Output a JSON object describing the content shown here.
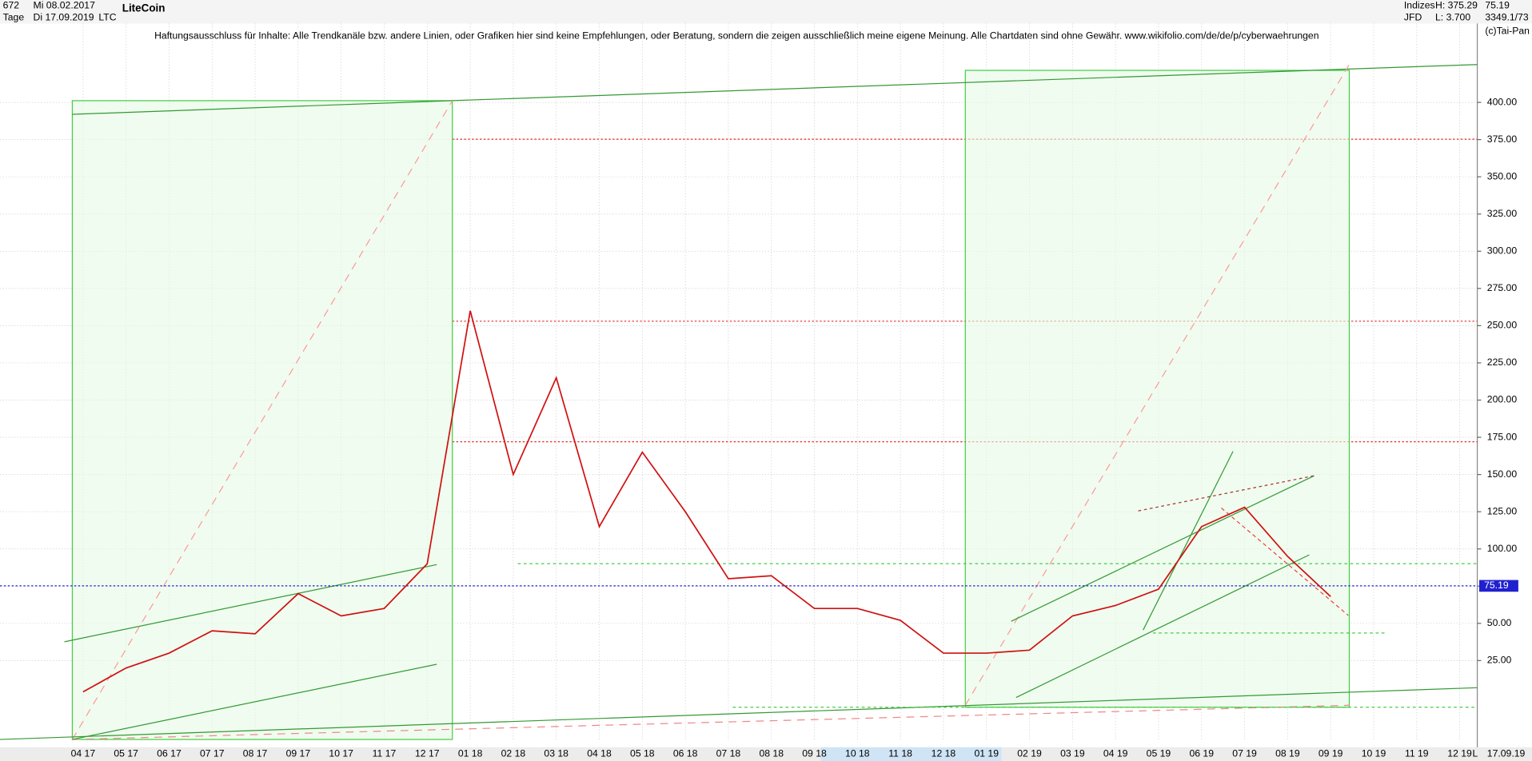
{
  "header": {
    "count": "672",
    "start": "Mi 08.02.2017",
    "period": "Tage",
    "end": "Di 17.09.2019",
    "title": "LiteCoin",
    "symbol": "LTC",
    "market": "Indizes",
    "exchange": "JFD",
    "high": "H: 375.29",
    "low": "L: 3.700",
    "last": "75.19",
    "volume": "3349.1/73",
    "copyright": "(c)Tai-Pan",
    "disclaimer": "Haftungsausschluss für Inhalte: Alle Trendkanäle bzw. andere Linien, oder Grafiken hier sind keine Empfehlungen, oder Beratung, sondern die zeigen ausschließlich meine eigene Meinung. Alle Chartdaten sind ohne Gewähr.  www.wikifolio.com/de/de/p/cyberwaehrungen",
    "date": "17.09.19",
    "scale_mode": "L"
  },
  "chart_data": {
    "type": "line",
    "categories": [
      "04 17",
      "05 17",
      "06 17",
      "07 17",
      "08 17",
      "09 17",
      "10 17",
      "11 17",
      "12 17",
      "01 18",
      "02 18",
      "03 18",
      "04 18",
      "05 18",
      "06 18",
      "07 18",
      "08 18",
      "09 18",
      "10 18",
      "11 18",
      "12 18",
      "01 19",
      "02 19",
      "03 19",
      "04 19",
      "05 19",
      "06 19",
      "07 19",
      "08 19",
      "09 19",
      "10 19",
      "11 19",
      "12 19"
    ],
    "series": [
      {
        "name": "LiteCoin",
        "color": "#d01010",
        "values": [
          4,
          20,
          30,
          45,
          43,
          70,
          55,
          60,
          90,
          260,
          150,
          215,
          115,
          165,
          125,
          80,
          82,
          60,
          60,
          52,
          30,
          30,
          32,
          55,
          62,
          73,
          115,
          128,
          95,
          68,
          null,
          null,
          null
        ]
      }
    ],
    "ylim": [
      -28,
      453
    ],
    "yticks": [
      {
        "value": 25,
        "label": "25.00"
      },
      {
        "value": 50,
        "label": "50.00"
      },
      {
        "value": 75,
        "label": "75.00"
      },
      {
        "value": 100,
        "label": "100.00"
      },
      {
        "value": 125,
        "label": "125.00"
      },
      {
        "value": 150,
        "label": "150.00"
      },
      {
        "value": 175,
        "label": "175.00"
      },
      {
        "value": 200,
        "label": "200.00"
      },
      {
        "value": 225,
        "label": "225.00"
      },
      {
        "value": 250,
        "label": "250.00"
      },
      {
        "value": 275,
        "label": "275.00"
      },
      {
        "value": 300,
        "label": "300.00"
      },
      {
        "value": 325,
        "label": "325.00"
      },
      {
        "value": 350,
        "label": "350.00"
      },
      {
        "value": 375,
        "label": "375.00"
      },
      {
        "value": 400,
        "label": "400.00"
      }
    ],
    "levels": [
      {
        "value": 375.29,
        "color": "#e03030"
      },
      {
        "value": 253,
        "color": "#e03030"
      },
      {
        "value": 172,
        "color": "#e03030"
      }
    ],
    "current": 75.19,
    "current_color": "#2020d0",
    "grid": true
  }
}
